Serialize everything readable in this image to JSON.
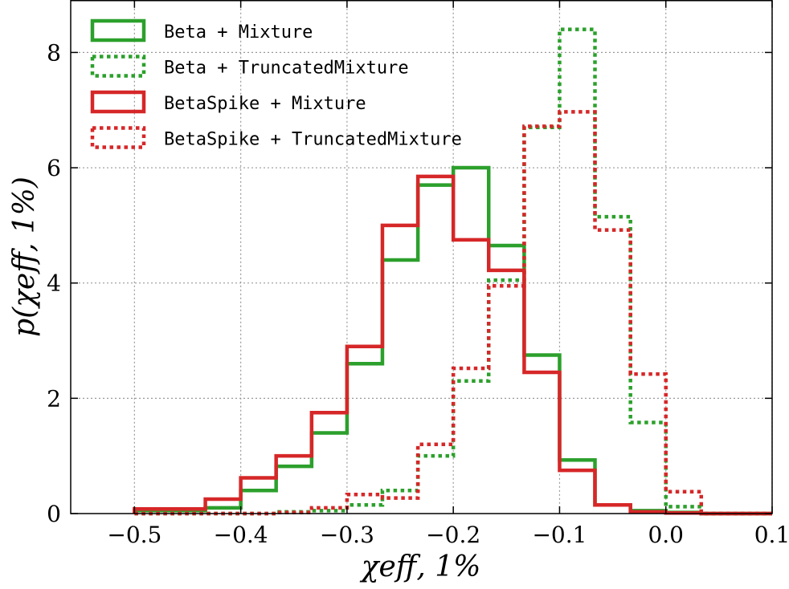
{
  "chart_data": {
    "type": "histogram-step",
    "xlabel": "χeff, 1%",
    "ylabel": "p(χeff, 1%)",
    "xlim": [
      -0.56,
      0.1
    ],
    "ylim": [
      0,
      8.9
    ],
    "grid": true,
    "legend_position": "top-left",
    "xticks": [
      -0.5,
      -0.4,
      -0.3,
      -0.2,
      -0.1,
      0.0,
      0.1
    ],
    "xtick_labels": [
      "−0.5",
      "−0.4",
      "−0.3",
      "−0.2",
      "−0.1",
      "0.0",
      "0.1"
    ],
    "yticks": [
      0,
      2,
      4,
      6,
      8
    ],
    "ytick_labels": [
      "0",
      "2",
      "4",
      "6",
      "8"
    ],
    "bin_edges": [
      -0.5,
      -0.4667,
      -0.4333,
      -0.4,
      -0.3667,
      -0.3333,
      -0.3,
      -0.2667,
      -0.2333,
      -0.2,
      -0.1667,
      -0.1333,
      -0.1,
      -0.0667,
      -0.0333,
      0.0,
      0.0333,
      0.0667,
      0.1
    ],
    "series": [
      {
        "name": "Beta + Mixture",
        "color": "#2ca02c",
        "linestyle": "solid",
        "values": [
          0.05,
          0.05,
          0.1,
          0.4,
          0.82,
          1.4,
          2.6,
          4.4,
          5.7,
          6.0,
          4.65,
          2.75,
          0.93,
          0.15,
          0.05,
          0.02,
          0.0,
          0.0
        ]
      },
      {
        "name": "Beta + TruncatedMixture",
        "color": "#2ca02c",
        "linestyle": "dotted",
        "values": [
          0.0,
          0.0,
          0.0,
          0.0,
          0.03,
          0.05,
          0.15,
          0.4,
          1.0,
          2.3,
          4.05,
          6.7,
          8.4,
          5.15,
          1.58,
          0.12,
          0.0,
          0.0
        ]
      },
      {
        "name": "BetaSpike + Mixture",
        "color": "#d62728",
        "linestyle": "solid",
        "values": [
          0.08,
          0.08,
          0.25,
          0.62,
          1.0,
          1.75,
          2.9,
          5.0,
          5.85,
          4.75,
          4.22,
          2.45,
          0.75,
          0.15,
          0.03,
          0.01,
          0.0,
          0.0
        ]
      },
      {
        "name": "BetaSpike + TruncatedMixture",
        "color": "#d62728",
        "linestyle": "dotted",
        "values": [
          0.0,
          0.0,
          0.0,
          0.0,
          0.02,
          0.1,
          0.33,
          0.27,
          1.2,
          2.52,
          3.95,
          6.72,
          6.97,
          4.92,
          2.42,
          0.38,
          0.0,
          0.0
        ]
      }
    ]
  }
}
